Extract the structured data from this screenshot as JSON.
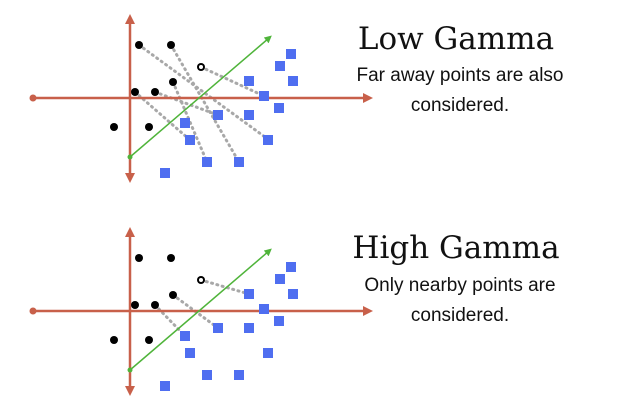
{
  "panels": [
    {
      "title": "Low Gamma",
      "caption_line1": "Far away points are also",
      "caption_line2": "considered.",
      "connections": "far"
    },
    {
      "title": "High Gamma",
      "caption_line1": "Only nearby points are",
      "caption_line2": "considered.",
      "connections": "near"
    }
  ],
  "colors": {
    "axes": "#c8604a",
    "boundary": "#4fb43a",
    "class_a": "#000000",
    "class_b": "#4f6ef0",
    "influence": "#a8a8a8"
  }
}
